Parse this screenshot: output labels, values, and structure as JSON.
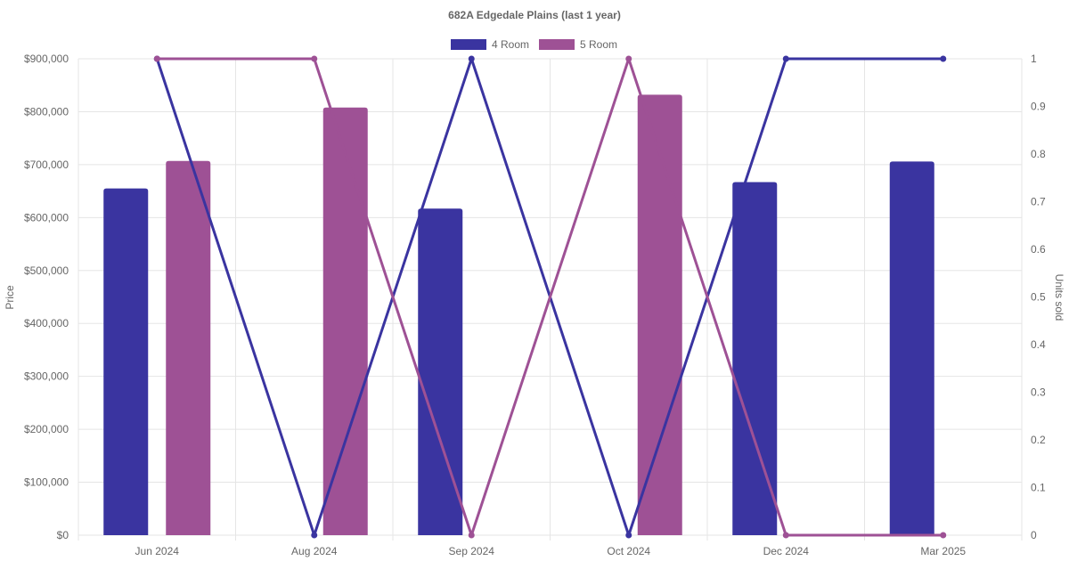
{
  "chart_data": {
    "type": "bar",
    "title": "682A Edgedale  Plains (last 1 year)",
    "categories": [
      "Jun 2024",
      "Aug 2024",
      "Sep 2024",
      "Oct 2024",
      "Dec 2024",
      "Mar 2025"
    ],
    "ylabel": "Price",
    "y2label": "Units sold",
    "ylim": [
      0,
      900000
    ],
    "y2lim": [
      0,
      1
    ],
    "y_ticks": [
      "$0",
      "$100,000",
      "$200,000",
      "$300,000",
      "$400,000",
      "$500,000",
      "$600,000",
      "$700,000",
      "$800,000",
      "$900,000"
    ],
    "y2_ticks": [
      "0",
      "0.1",
      "0.2",
      "0.3",
      "0.4",
      "0.5",
      "0.6",
      "0.7",
      "0.8",
      "0.9",
      "1"
    ],
    "grid": true,
    "legend_position": "top",
    "series": [
      {
        "name": "4 Room",
        "color": "#3a34a0",
        "price": [
          655000,
          null,
          617000,
          null,
          667000,
          706000
        ],
        "units_sold": [
          1,
          0,
          1,
          0,
          1,
          1
        ]
      },
      {
        "name": "5 Room",
        "color": "#9e5195",
        "price": [
          707000,
          808000,
          null,
          832000,
          null,
          null
        ],
        "units_sold": [
          1,
          1,
          0,
          1,
          0,
          0
        ]
      }
    ]
  }
}
